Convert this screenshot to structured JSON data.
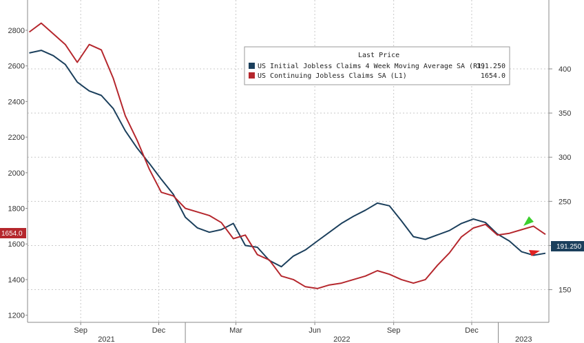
{
  "chart_data": {
    "type": "line",
    "legend": {
      "title": "Last Price",
      "placement": "top-right",
      "entries": [
        {
          "label": "US Initial Jobless Claims 4 Week Moving Average SA  (R1)",
          "value": "191.250",
          "color": "#1b3f5c"
        },
        {
          "label": "US Continuing Jobless Claims SA  (L1)",
          "value": "1654.0",
          "color": "#b5272d"
        }
      ]
    },
    "x_axis": {
      "months": [
        "Sep",
        "Dec",
        "Mar",
        "Jun",
        "Sep",
        "Dec"
      ],
      "years": [
        "2021",
        "2022",
        "2023"
      ],
      "range": [
        "2021-07-01",
        "2023-03-01"
      ]
    },
    "left_axis": {
      "ticks": [
        "1200",
        "1400",
        "1600",
        "1800",
        "2000",
        "2200",
        "2400",
        "2600",
        "2800"
      ],
      "range": [
        1160,
        2970
      ]
    },
    "right_axis": {
      "ticks": [
        "150",
        "200",
        "250",
        "300",
        "350",
        "400"
      ],
      "range": [
        113,
        478
      ]
    },
    "last_value_flags": {
      "left": "1654.0",
      "right": "191.250"
    },
    "grid": true,
    "series": [
      {
        "name": "US Initial Jobless Claims 4 Week Moving Average SA  (R1)",
        "axis": "right",
        "color": "#1b3f5c",
        "points": [
          [
            "2021-07-03",
            418
          ],
          [
            "2021-07-17",
            421
          ],
          [
            "2021-07-31",
            415
          ],
          [
            "2021-08-14",
            405
          ],
          [
            "2021-08-28",
            385
          ],
          [
            "2021-09-11",
            375
          ],
          [
            "2021-09-25",
            370
          ],
          [
            "2021-10-09",
            355
          ],
          [
            "2021-10-23",
            330
          ],
          [
            "2021-11-06",
            310
          ],
          [
            "2021-11-20",
            293
          ],
          [
            "2021-12-04",
            275
          ],
          [
            "2021-12-18",
            258
          ],
          [
            "2022-01-01",
            232
          ],
          [
            "2022-01-15",
            220
          ],
          [
            "2022-01-29",
            215
          ],
          [
            "2022-02-12",
            218
          ],
          [
            "2022-02-26",
            225
          ],
          [
            "2022-03-12",
            200
          ],
          [
            "2022-03-26",
            198
          ],
          [
            "2022-04-09",
            183
          ],
          [
            "2022-04-23",
            176
          ],
          [
            "2022-05-07",
            188
          ],
          [
            "2022-05-21",
            195
          ],
          [
            "2022-06-04",
            205
          ],
          [
            "2022-06-18",
            215
          ],
          [
            "2022-07-02",
            225
          ],
          [
            "2022-07-16",
            233
          ],
          [
            "2022-07-30",
            240
          ],
          [
            "2022-08-13",
            248
          ],
          [
            "2022-08-27",
            245
          ],
          [
            "2022-09-10",
            228
          ],
          [
            "2022-09-24",
            210
          ],
          [
            "2022-10-08",
            207
          ],
          [
            "2022-10-22",
            212
          ],
          [
            "2022-11-05",
            217
          ],
          [
            "2022-11-19",
            225
          ],
          [
            "2022-12-03",
            230
          ],
          [
            "2022-12-17",
            226
          ],
          [
            "2022-12-31",
            213
          ],
          [
            "2023-01-14",
            205
          ],
          [
            "2023-01-28",
            193
          ],
          [
            "2023-02-11",
            189
          ],
          [
            "2023-02-25",
            191.25
          ]
        ]
      },
      {
        "name": "US Continuing Jobless Claims SA  (L1)",
        "axis": "left",
        "color": "#b5272d",
        "points": [
          [
            "2021-07-03",
            2790
          ],
          [
            "2021-07-17",
            2840
          ],
          [
            "2021-07-31",
            2780
          ],
          [
            "2021-08-14",
            2720
          ],
          [
            "2021-08-28",
            2620
          ],
          [
            "2021-09-11",
            2720
          ],
          [
            "2021-09-25",
            2690
          ],
          [
            "2021-10-09",
            2530
          ],
          [
            "2021-10-23",
            2320
          ],
          [
            "2021-11-06",
            2180
          ],
          [
            "2021-11-20",
            2020
          ],
          [
            "2021-12-04",
            1890
          ],
          [
            "2021-12-18",
            1870
          ],
          [
            "2022-01-01",
            1800
          ],
          [
            "2022-01-15",
            1780
          ],
          [
            "2022-01-29",
            1760
          ],
          [
            "2022-02-12",
            1720
          ],
          [
            "2022-02-26",
            1630
          ],
          [
            "2022-03-12",
            1650
          ],
          [
            "2022-03-26",
            1540
          ],
          [
            "2022-04-09",
            1510
          ],
          [
            "2022-04-23",
            1420
          ],
          [
            "2022-05-07",
            1400
          ],
          [
            "2022-05-21",
            1360
          ],
          [
            "2022-06-04",
            1350
          ],
          [
            "2022-06-18",
            1370
          ],
          [
            "2022-07-02",
            1380
          ],
          [
            "2022-07-16",
            1400
          ],
          [
            "2022-07-30",
            1420
          ],
          [
            "2022-08-13",
            1450
          ],
          [
            "2022-08-27",
            1430
          ],
          [
            "2022-09-10",
            1400
          ],
          [
            "2022-09-24",
            1380
          ],
          [
            "2022-10-08",
            1400
          ],
          [
            "2022-10-22",
            1480
          ],
          [
            "2022-11-05",
            1550
          ],
          [
            "2022-11-19",
            1640
          ],
          [
            "2022-12-03",
            1690
          ],
          [
            "2022-12-17",
            1710
          ],
          [
            "2022-12-31",
            1650
          ],
          [
            "2023-01-14",
            1660
          ],
          [
            "2023-01-28",
            1680
          ],
          [
            "2023-02-11",
            1700
          ],
          [
            "2023-02-25",
            1654
          ]
        ]
      }
    ]
  }
}
